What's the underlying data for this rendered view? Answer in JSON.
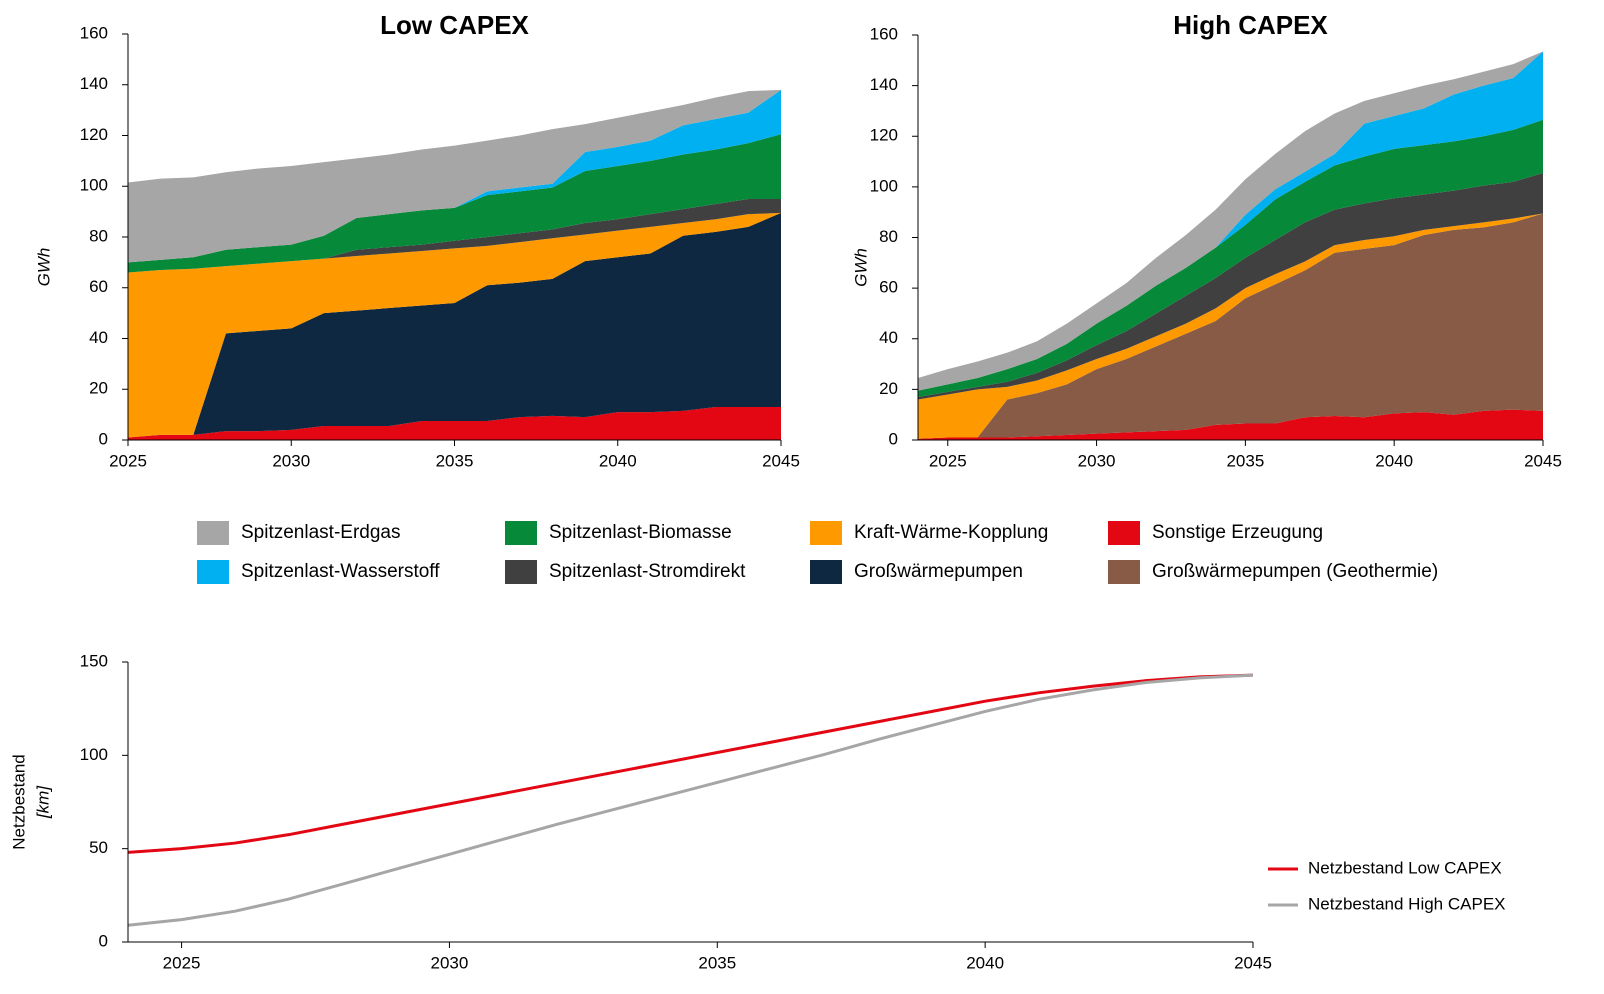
{
  "chart_data": [
    {
      "type": "area",
      "stacked": true,
      "title": "Low CAPEX",
      "ylabel": "GWh",
      "x": [
        2025,
        2026,
        2027,
        2028,
        2029,
        2030,
        2031,
        2032,
        2033,
        2034,
        2035,
        2036,
        2037,
        2038,
        2039,
        2040,
        2041,
        2042,
        2043,
        2044,
        2045
      ],
      "xlim": [
        2025,
        2045
      ],
      "xticks": [
        2025,
        2030,
        2035,
        2040,
        2045
      ],
      "ylim": [
        0,
        160
      ],
      "yticks": [
        0,
        20,
        40,
        60,
        80,
        100,
        120,
        140,
        160
      ],
      "series": [
        {
          "name": "Sonstige Erzeugung",
          "color": "#e30613",
          "values": [
            1,
            2,
            2,
            3.5,
            3.5,
            4,
            5.5,
            5.5,
            5.5,
            7.5,
            7.5,
            7.5,
            9,
            9.5,
            9,
            11,
            11,
            11.5,
            13,
            13,
            13
          ]
        },
        {
          "name": "Großwärmepumpen",
          "color": "#0e2841",
          "values": [
            0,
            0,
            0,
            38.5,
            39.5,
            40,
            44.5,
            45.5,
            46.5,
            45.5,
            46.5,
            53.5,
            53,
            54,
            61.5,
            61,
            62.5,
            69,
            69,
            71,
            76.5
          ]
        },
        {
          "name": "Kraft-Wärme-Kopplung",
          "color": "#ff9900",
          "values": [
            65,
            65,
            65.5,
            26.5,
            26.5,
            26.5,
            21.5,
            21.5,
            21.5,
            21.5,
            21.5,
            15.5,
            16,
            16,
            10.5,
            10.5,
            10.5,
            5,
            5,
            5,
            0
          ]
        },
        {
          "name": "Spitzenlast-Stromdirekt",
          "color": "#404040",
          "values": [
            0,
            0,
            0,
            0,
            0,
            0,
            0,
            2.5,
            2.5,
            2.5,
            3,
            3.5,
            3.5,
            3.5,
            4.5,
            4.5,
            5,
            5.5,
            6,
            6,
            5.5
          ]
        },
        {
          "name": "Spitzenlast-Biomasse",
          "color": "#07893a",
          "values": [
            4,
            4,
            4.5,
            6.5,
            6.5,
            6.5,
            9,
            12.5,
            13,
            13.5,
            13,
            16.5,
            16.5,
            16.5,
            20.5,
            21,
            21,
            21.5,
            21.5,
            22,
            25.5
          ]
        },
        {
          "name": "Spitzenlast-Wasserstoff",
          "color": "#00b0f0",
          "values": [
            0,
            0,
            0,
            0,
            0,
            0,
            0,
            0,
            0,
            0,
            0,
            1.5,
            1.5,
            1.5,
            7.5,
            7.5,
            8,
            11.5,
            12,
            12,
            17.5
          ]
        },
        {
          "name": "Spitzenlast-Erdgas",
          "color": "#a6a6a6",
          "values": [
            31.5,
            32,
            31.5,
            30.5,
            31,
            31,
            29,
            23.5,
            23.5,
            24,
            24.5,
            20,
            20.5,
            21.5,
            11,
            11.5,
            11.5,
            8,
            8.5,
            8.5,
            0
          ]
        }
      ]
    },
    {
      "type": "area",
      "stacked": true,
      "title": "High CAPEX",
      "ylabel": "GWh",
      "x": [
        2024,
        2025,
        2026,
        2027,
        2028,
        2029,
        2030,
        2031,
        2032,
        2033,
        2034,
        2035,
        2036,
        2037,
        2038,
        2039,
        2040,
        2041,
        2042,
        2043,
        2044,
        2045
      ],
      "xlim": [
        2024,
        2045
      ],
      "xticks": [
        2025,
        2030,
        2035,
        2040,
        2045
      ],
      "ylim": [
        0,
        160
      ],
      "yticks": [
        0,
        20,
        40,
        60,
        80,
        100,
        120,
        140,
        160
      ],
      "series": [
        {
          "name": "Sonstige Erzeugung",
          "color": "#e30613",
          "values": [
            0.5,
            1,
            1,
            1,
            1.5,
            2,
            2.5,
            3,
            3.5,
            4,
            6,
            6.5,
            6.5,
            9,
            9.5,
            9,
            10.5,
            11,
            10,
            11.5,
            12,
            11.5
          ]
        },
        {
          "name": "Großwärmepumpen (Geothermie)",
          "color": "#875b45",
          "values": [
            0,
            0,
            0,
            15,
            17,
            20,
            25.5,
            29,
            33.5,
            38,
            41,
            49.5,
            55,
            58,
            64.5,
            66.5,
            66.5,
            70,
            73,
            72.5,
            74,
            78
          ]
        },
        {
          "name": "Kraft-Wärme-Kopplung",
          "color": "#ff9900",
          "values": [
            15.5,
            17,
            19,
            5,
            5,
            5.5,
            4,
            4,
            4,
            4,
            5,
            4,
            4,
            3.5,
            3,
            3.5,
            3.5,
            2,
            1.5,
            2,
            1.5,
            0
          ]
        },
        {
          "name": "Spitzenlast-Stromdirekt",
          "color": "#404040",
          "values": [
            1,
            1,
            1,
            2,
            3,
            4,
            5.5,
            7,
            9,
            11,
            12,
            12,
            13.5,
            15.5,
            14,
            14.5,
            15,
            14,
            14,
            14.5,
            14.5,
            16
          ]
        },
        {
          "name": "Spitzenlast-Biomasse",
          "color": "#07893a",
          "values": [
            2.5,
            3,
            3.5,
            5,
            5.5,
            6.5,
            8.5,
            10,
            11,
            11,
            12,
            13,
            16,
            16,
            17.5,
            18.5,
            19.5,
            19.5,
            19.5,
            19.5,
            20.5,
            21
          ]
        },
        {
          "name": "Spitzenlast-Wasserstoff",
          "color": "#00b0f0",
          "values": [
            0,
            0,
            0,
            0,
            0,
            0,
            0,
            0,
            0,
            0,
            0,
            4,
            4,
            4,
            4.5,
            13,
            13,
            14.5,
            18.5,
            20,
            20.5,
            27
          ]
        },
        {
          "name": "Spitzenlast-Erdgas",
          "color": "#a6a6a6",
          "values": [
            5,
            6,
            6.5,
            6.5,
            7,
            8,
            8,
            9,
            11,
            13,
            15,
            14,
            14,
            16,
            16,
            9,
            9,
            9,
            6,
            5.5,
            5.5,
            0
          ]
        }
      ]
    },
    {
      "type": "line",
      "ylabel": "Netzbestand",
      "ylabel_unit": "[km]",
      "legend": "right",
      "x": [
        2024,
        2025,
        2026,
        2027,
        2028,
        2029,
        2030,
        2031,
        2032,
        2033,
        2034,
        2035,
        2036,
        2037,
        2038,
        2039,
        2040,
        2041,
        2042,
        2043,
        2044,
        2045
      ],
      "xlim": [
        2024,
        2045
      ],
      "xticks": [
        2025,
        2030,
        2035,
        2040,
        2045
      ],
      "ylim": [
        0,
        150
      ],
      "yticks": [
        0,
        50,
        100,
        150
      ],
      "series": [
        {
          "name": "Netzbestand Low CAPEX",
          "color": "#e30613",
          "values": [
            48,
            50,
            53,
            57.5,
            63,
            68.5,
            74,
            79.5,
            85,
            90.5,
            96,
            101.5,
            107,
            112.5,
            118,
            123.5,
            129,
            133.5,
            137,
            140,
            142,
            143
          ]
        },
        {
          "name": "Netzbestand High CAPEX",
          "color": "#a6a6a6",
          "values": [
            9,
            12,
            16.5,
            23,
            31,
            39,
            47,
            55,
            63,
            70.5,
            78,
            85.5,
            93,
            100.5,
            108.5,
            116,
            123.5,
            130,
            135,
            139,
            141.5,
            143
          ]
        }
      ]
    }
  ]
}
